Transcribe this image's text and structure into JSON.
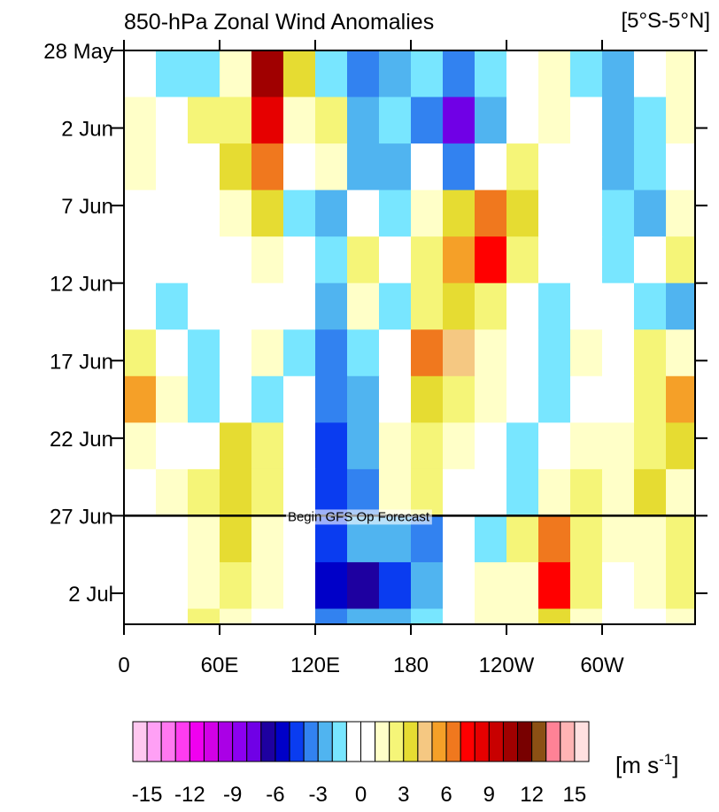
{
  "chart_data": {
    "type": "heatmap",
    "title": "850-hPa Zonal Wind Anomalies",
    "subtitle": "[5°S-5°N]",
    "xlim": [
      0,
      360
    ],
    "xticks": [
      0,
      {
        "value": 60,
        "label": "60E"
      },
      {
        "value": 120,
        "label": "120E"
      },
      180,
      {
        "value": 240,
        "label": "120W"
      },
      {
        "value": 300,
        "label": "60W"
      }
    ],
    "ylim": [
      0,
      37
    ],
    "yticks": [
      {
        "value": 0,
        "label": "28 May"
      },
      {
        "value": 5,
        "label": "2 Jun"
      },
      {
        "value": 10,
        "label": "7 Jun"
      },
      {
        "value": 15,
        "label": "12 Jun"
      },
      {
        "value": 20,
        "label": "17 Jun"
      },
      {
        "value": 25,
        "label": "22 Jun"
      },
      {
        "value": 30,
        "label": "27 Jun"
      },
      {
        "value": 35,
        "label": "2 Jul"
      }
    ],
    "xbins": [
      0,
      20,
      40,
      60,
      80,
      100,
      120,
      140,
      160,
      180,
      200,
      220,
      240,
      260,
      280,
      300,
      320,
      340,
      360
    ],
    "ybins": [
      0,
      3,
      6,
      9,
      12,
      15,
      18,
      21,
      24,
      27,
      30,
      33,
      36,
      37
    ],
    "z": [
      [
        0,
        -2,
        -2,
        1,
        10,
        3,
        -2,
        -4,
        -3,
        -2,
        -4,
        -2,
        -1,
        1,
        -2,
        -3,
        -1,
        1
      ],
      [
        1,
        -1,
        2,
        2,
        8,
        1,
        2,
        -3,
        -2,
        -4,
        -8,
        -3,
        0,
        1,
        -1,
        -3,
        -2,
        1
      ],
      [
        1,
        0,
        -1,
        3,
        6,
        -1,
        1,
        -3,
        -3,
        -1,
        -4,
        -1,
        2,
        0,
        -1,
        -3,
        -2,
        0
      ],
      [
        0,
        -1,
        0,
        1,
        3,
        -2,
        -3,
        -1,
        -2,
        1,
        3,
        6,
        3,
        0,
        -1,
        -2,
        -3,
        1
      ],
      [
        -1,
        -1,
        -1,
        0,
        1,
        -1,
        -2,
        2,
        -1,
        2,
        5,
        7,
        2,
        -1,
        -1,
        -2,
        -1,
        2
      ],
      [
        0,
        -2,
        -1,
        0,
        0,
        -1,
        -3,
        1,
        -2,
        2,
        3,
        2,
        0,
        -2,
        -1,
        -1,
        -2,
        -3
      ],
      [
        2,
        -1,
        -2,
        0,
        1,
        -2,
        -4,
        -2,
        -1,
        6,
        4,
        1,
        -1,
        -2,
        1,
        -1,
        2,
        1
      ],
      [
        5,
        1,
        -2,
        -1,
        -2,
        -1,
        -4,
        -3,
        0,
        3,
        2,
        1,
        0,
        -2,
        0,
        -1,
        2,
        5
      ],
      [
        1,
        0,
        -1,
        3,
        2,
        -1,
        -5,
        -3,
        1,
        2,
        1,
        0,
        -2,
        -1,
        1,
        1,
        2,
        3
      ],
      [
        0,
        1,
        2,
        3,
        2,
        0,
        -5,
        -4,
        1,
        2,
        0,
        -1,
        -2,
        1,
        2,
        1,
        3,
        1
      ],
      [
        -1,
        -1,
        1,
        3,
        1,
        -1,
        -5,
        -3,
        -3,
        -4,
        -1,
        -2,
        2,
        6,
        2,
        1,
        1,
        2
      ],
      [
        -1,
        -1,
        1,
        2,
        1,
        -1,
        -6,
        -7,
        -5,
        -3,
        -1,
        1,
        1,
        7,
        2,
        -1,
        1,
        2
      ],
      [
        0,
        -1,
        2,
        1,
        0,
        -1,
        -4,
        -3,
        -3,
        -2,
        -1,
        1,
        1,
        3,
        1,
        -1,
        0,
        1
      ]
    ],
    "forecast": {
      "y": 30,
      "label": "Begin GFS Op Forecast"
    },
    "colorbar": {
      "levels": [
        -15,
        -14,
        -13,
        -12,
        -11,
        -10,
        -9,
        -8,
        -7,
        -6,
        -5,
        -4,
        -3,
        -2,
        -1,
        0,
        1,
        2,
        3,
        4,
        5,
        6,
        7,
        8,
        9,
        10,
        11,
        12,
        13,
        14,
        15
      ],
      "colors": [
        "#ffc8f0",
        "#ffa0f5",
        "#ff78f0",
        "#ff3cf0",
        "#f000f0",
        "#d200e6",
        "#aa00e6",
        "#8c00f0",
        "#7000e6",
        "#1e00a0",
        "#0000c8",
        "#0a3cf0",
        "#3282f0",
        "#50b4f0",
        "#78e6ff",
        "#ffffff",
        "#ffffff",
        "#ffffc8",
        "#f5f578",
        "#e6dc32",
        "#f5c882",
        "#f5a028",
        "#f0781e",
        "#ff0000",
        "#e60000",
        "#c80000",
        "#a00000",
        "#780000",
        "#8c5014",
        "#ff8296",
        "#ffb4b4",
        "#ffe0e0"
      ],
      "ticks": [
        -15,
        -12,
        -9,
        -6,
        -3,
        0,
        3,
        6,
        9,
        12,
        15
      ],
      "label": [
        "[m s",
        "-1",
        "]"
      ]
    }
  }
}
